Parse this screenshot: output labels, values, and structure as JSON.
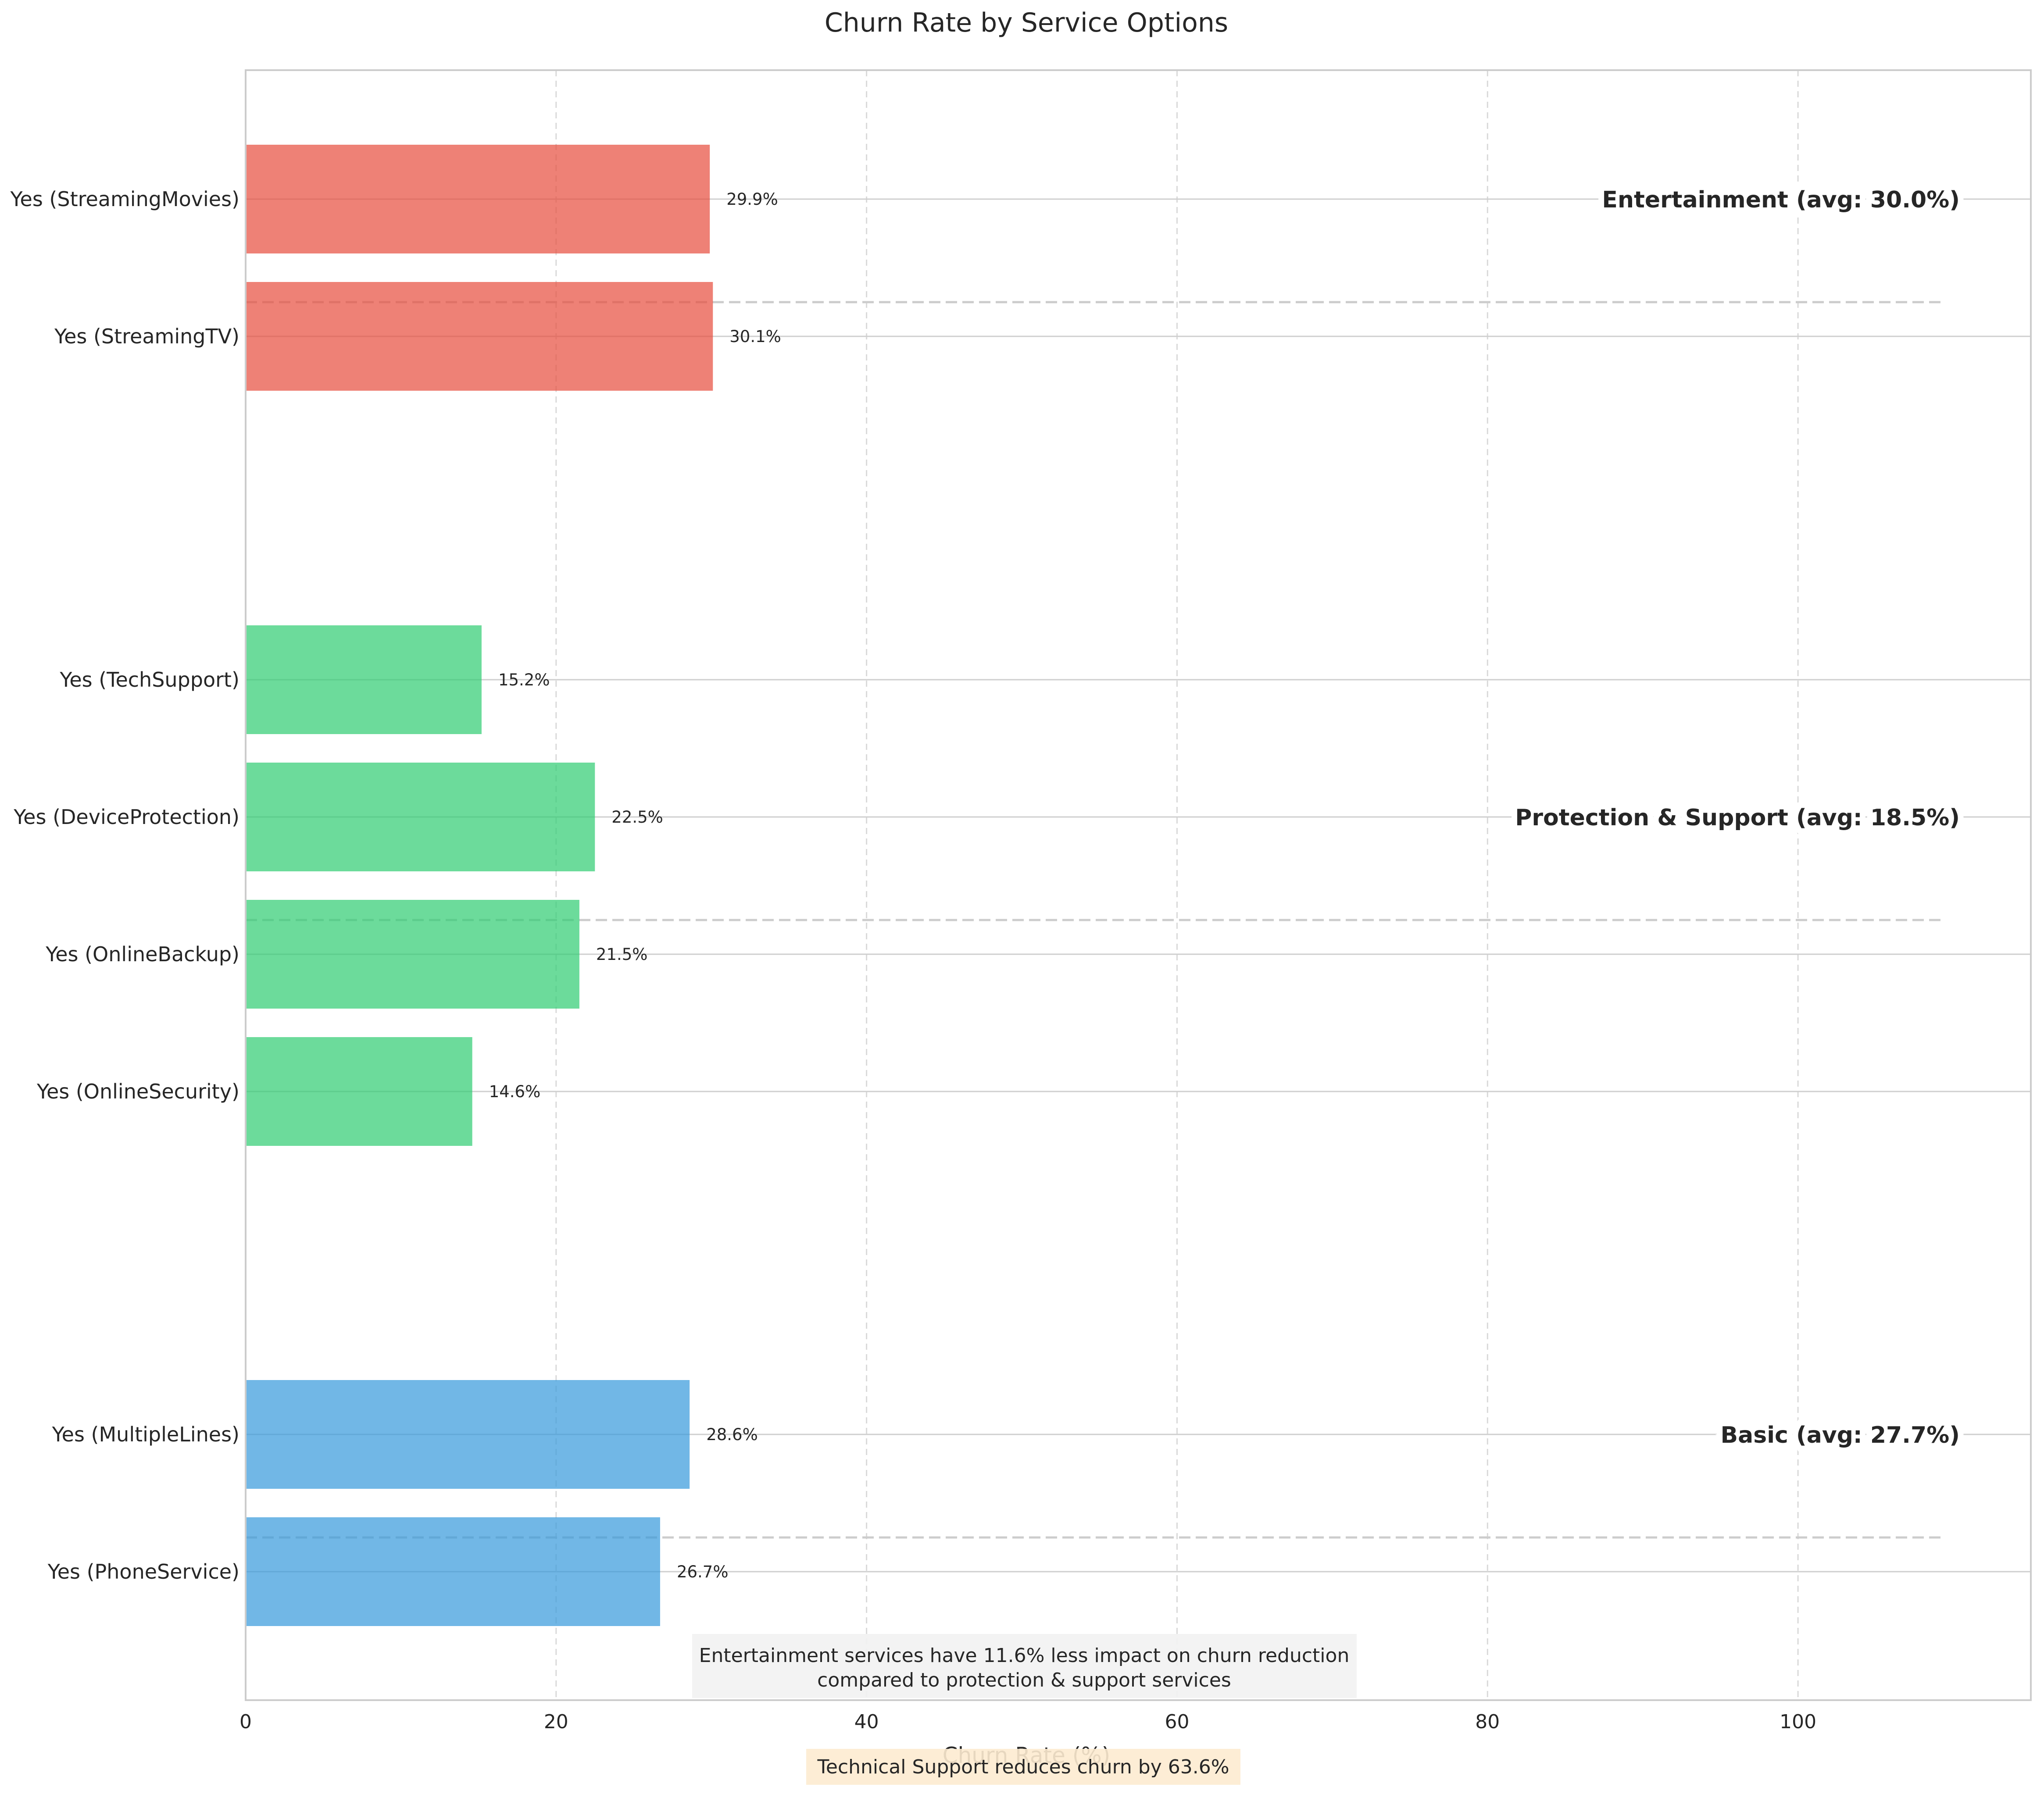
{
  "chart_data": {
    "type": "bar",
    "orientation": "horizontal",
    "title": "Churn Rate by Service Options",
    "xlabel": "Churn Rate (%)",
    "ylabel": "",
    "xlim": [
      0,
      115
    ],
    "x_ticks": [
      0,
      20,
      40,
      60,
      80,
      100
    ],
    "grid": "x dashed",
    "categories": [
      "Yes (StreamingMovies)",
      "Yes (StreamingTV)",
      "Yes (TechSupport)",
      "Yes (DeviceProtection)",
      "Yes (OnlineBackup)",
      "Yes (OnlineSecurity)",
      "Yes (MultipleLines)",
      "Yes (PhoneService)"
    ],
    "values": [
      29.9,
      30.1,
      15.2,
      22.5,
      21.5,
      14.6,
      28.6,
      26.7
    ],
    "value_labels": [
      "29.9%",
      "30.1%",
      "15.2%",
      "22.5%",
      "21.5%",
      "14.6%",
      "28.6%",
      "26.7%"
    ],
    "bar_groups": [
      "Entertainment",
      "Entertainment",
      "Protection & Support",
      "Protection & Support",
      "Protection & Support",
      "Protection & Support",
      "Basic",
      "Basic"
    ],
    "groups": [
      {
        "name": "Entertainment",
        "label": "Entertainment (avg: 30.0%)",
        "avg": 30.0,
        "color": "#E74C3C"
      },
      {
        "name": "Protection & Support",
        "label": "Protection & Support (avg: 18.5%)",
        "avg": 18.5,
        "color": "#2ECC71"
      },
      {
        "name": "Basic",
        "label": "Basic (avg: 27.7%)",
        "avg": 27.7,
        "color": "#3498DB"
      }
    ],
    "annotations": {
      "comparison": [
        "Entertainment services have 11.6% less impact on churn reduction",
        "compared to protection & support services"
      ],
      "tech_support": "Technical Support reduces churn by 63.6%"
    }
  }
}
